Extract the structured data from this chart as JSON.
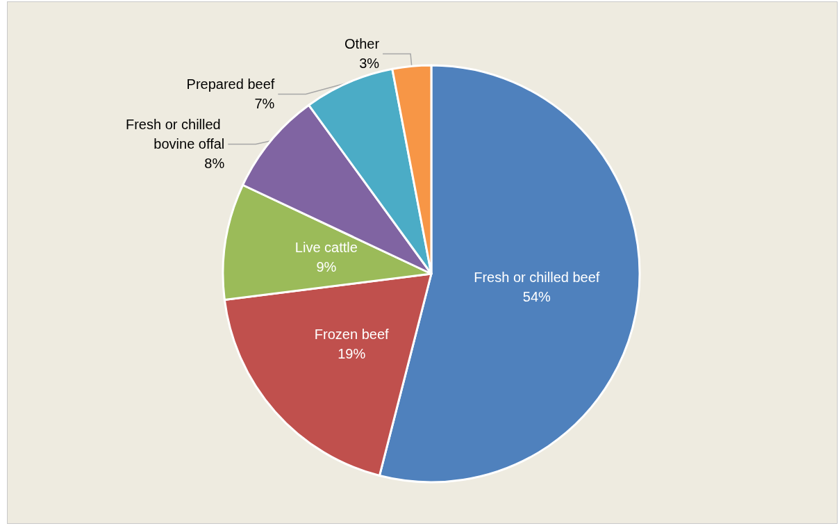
{
  "chart_data": {
    "type": "pie",
    "categories": [
      "Fresh or chilled beef",
      "Frozen beef",
      "Live cattle",
      "Fresh or chilled bovine offal",
      "Prepared beef",
      "Other"
    ],
    "values": [
      54,
      19,
      9,
      8,
      7,
      3
    ],
    "colors": [
      "#4f81bd",
      "#c0504d",
      "#9bbb59",
      "#8064a2",
      "#4bacc6",
      "#f79646"
    ],
    "value_labels": [
      "54%",
      "19%",
      "9%",
      "8%",
      "7%",
      "3%"
    ],
    "legend": false
  }
}
